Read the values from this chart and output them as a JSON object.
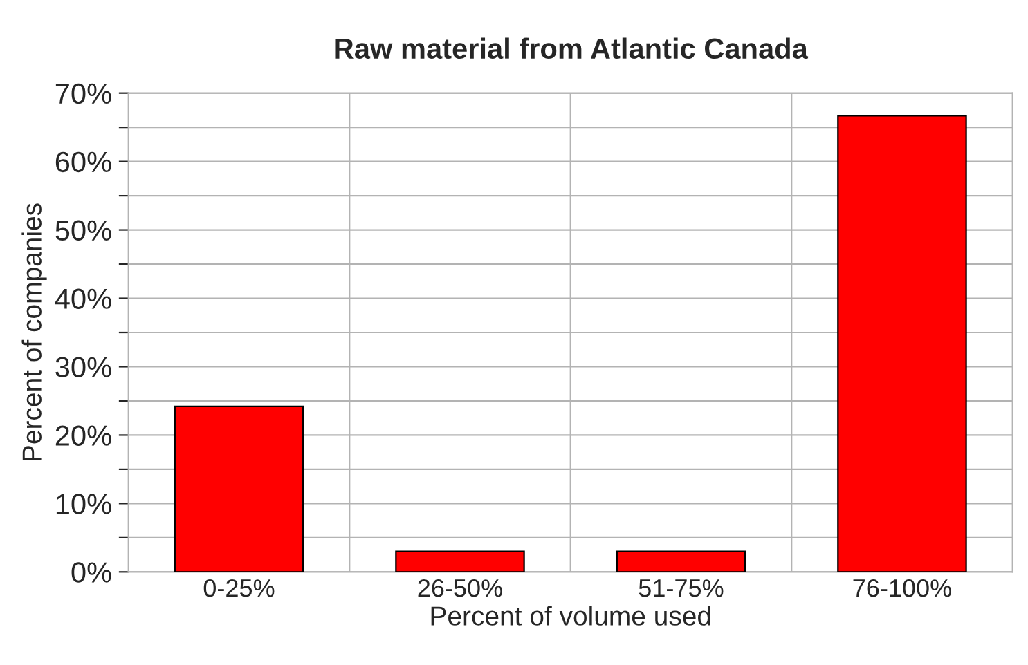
{
  "chart_data": {
    "type": "bar",
    "title": "Raw material from Atlantic Canada",
    "xlabel": "Percent of volume used",
    "ylabel": "Percent of companies",
    "categories": [
      "0-25%",
      "26-50%",
      "51-75%",
      "76-100%"
    ],
    "values": [
      24.2,
      3.0,
      3.0,
      66.7
    ],
    "color": "#ff0000",
    "ylim": [
      0,
      70
    ],
    "yticks": [
      {
        "value": 0,
        "label": "0%"
      },
      {
        "value": 5,
        "label": null
      },
      {
        "value": 10,
        "label": "10%"
      },
      {
        "value": 15,
        "label": null
      },
      {
        "value": 20,
        "label": "20%"
      },
      {
        "value": 25,
        "label": null
      },
      {
        "value": 30,
        "label": "30%"
      },
      {
        "value": 35,
        "label": null
      },
      {
        "value": 40,
        "label": "40%"
      },
      {
        "value": 45,
        "label": null
      },
      {
        "value": 50,
        "label": "50%"
      },
      {
        "value": 55,
        "label": null
      },
      {
        "value": 60,
        "label": "60%"
      },
      {
        "value": 65,
        "label": null
      },
      {
        "value": 70,
        "label": "70%"
      }
    ],
    "grid": true
  }
}
